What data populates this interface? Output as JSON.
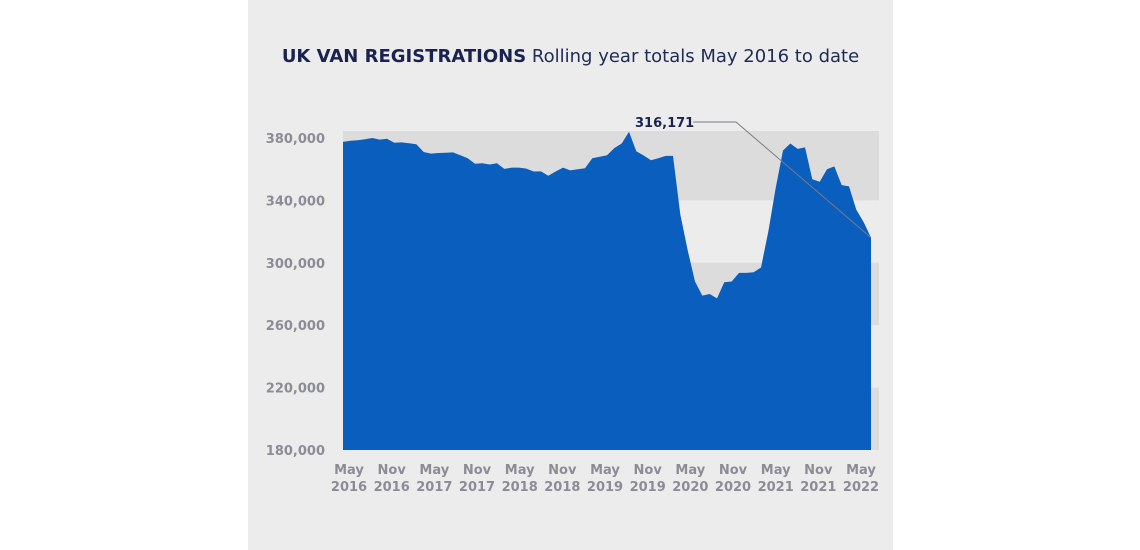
{
  "title": {
    "bold": "UK VAN REGISTRATIONS",
    "rest": "Rolling year totals May 2016 to date"
  },
  "colors": {
    "area": "#0a5ebd",
    "band": "#dcdcdc",
    "background": "#ececec"
  },
  "chart_data": {
    "type": "area",
    "title": "UK VAN REGISTRATIONS Rolling year totals May 2016 to date",
    "xlabel": "",
    "ylabel": "",
    "ylim": [
      180000,
      380000
    ],
    "yticks": [
      380000,
      340000,
      300000,
      260000,
      220000,
      180000
    ],
    "ytick_labels": [
      "380,000",
      "340,000",
      "300,000",
      "260,000",
      "220,000",
      "180,000"
    ],
    "xtick_labels": [
      [
        "May",
        "2016"
      ],
      [
        "Nov",
        "2016"
      ],
      [
        "May",
        "2017"
      ],
      [
        "Nov",
        "2017"
      ],
      [
        "May",
        "2018"
      ],
      [
        "Nov",
        "2018"
      ],
      [
        "May",
        "2019"
      ],
      [
        "Nov",
        "2019"
      ],
      [
        "May",
        "2020"
      ],
      [
        "Nov",
        "2020"
      ],
      [
        "May",
        "2021"
      ],
      [
        "Nov",
        "2021"
      ],
      [
        "May",
        "2022"
      ]
    ],
    "start": "2016-05",
    "end": "2022-05",
    "values": [
      377500,
      378200,
      378500,
      379200,
      380000,
      379000,
      379500,
      377000,
      377200,
      376600,
      376000,
      371000,
      370000,
      370400,
      370600,
      370800,
      369000,
      367000,
      363500,
      363800,
      363000,
      363800,
      360200,
      361000,
      361000,
      360400,
      358500,
      358600,
      355800,
      358500,
      361000,
      359200,
      360000,
      360600,
      367000,
      368000,
      369000,
      373500,
      376500,
      384000,
      371500,
      368800,
      365800,
      367000,
      368500,
      368500,
      331000,
      308000,
      288000,
      279000,
      280000,
      277200,
      287500,
      288000,
      293500,
      293500,
      294000,
      297000,
      320000,
      348000,
      372000,
      376500,
      373000,
      374000,
      353500,
      352000,
      360000,
      361800,
      349800,
      349000,
      334000,
      326000,
      316171
    ],
    "annotation": {
      "label": "316,171",
      "value": 316171,
      "date": "2022-05"
    },
    "grid": false
  }
}
